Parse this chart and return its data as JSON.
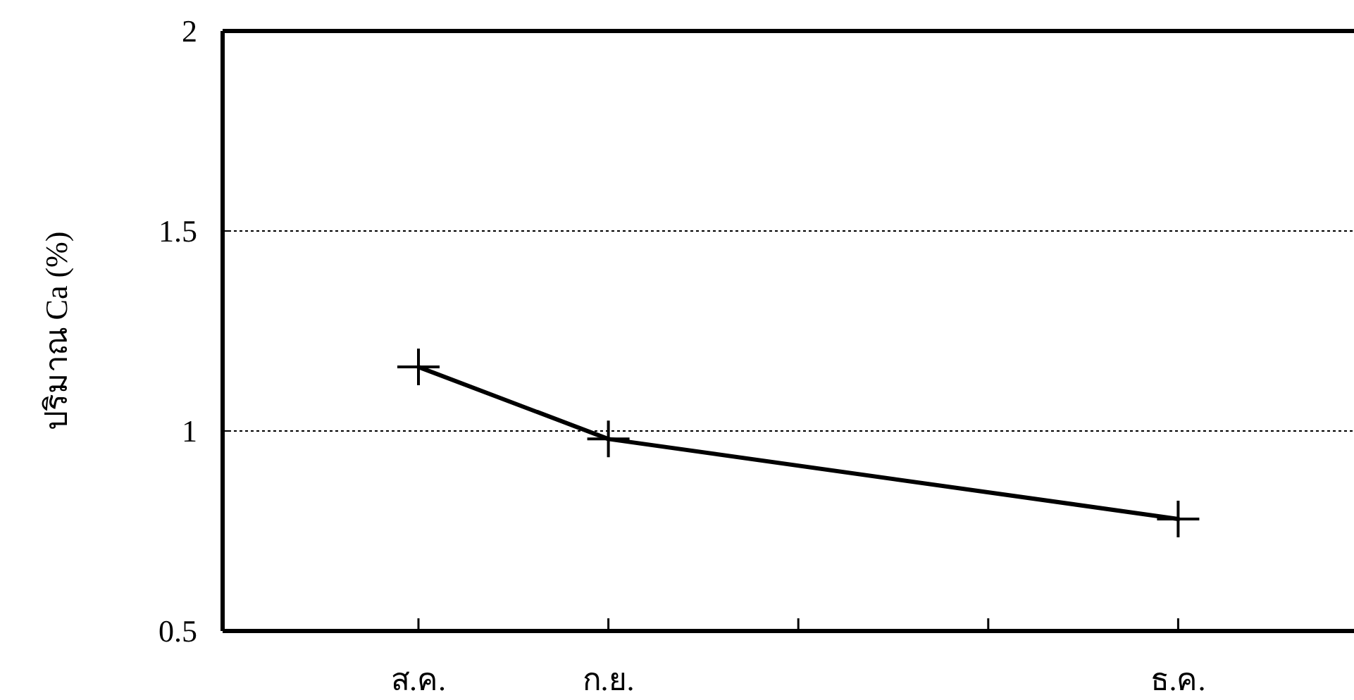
{
  "chart_data": {
    "type": "line",
    "ylabel": "ปริมาณ Ca (%)",
    "categories": [
      "ส.ค.",
      "ก.ย.",
      null,
      null,
      "ธ.ค."
    ],
    "series": [
      {
        "color": "#000000",
        "values": [
          1.16,
          0.98,
          null,
          null,
          0.78
        ]
      }
    ],
    "ylim": [
      0.5,
      2
    ],
    "yticks": [
      0.5,
      1,
      1.5,
      2
    ],
    "grid": "y",
    "marker": "cross",
    "line_style": "solid"
  }
}
